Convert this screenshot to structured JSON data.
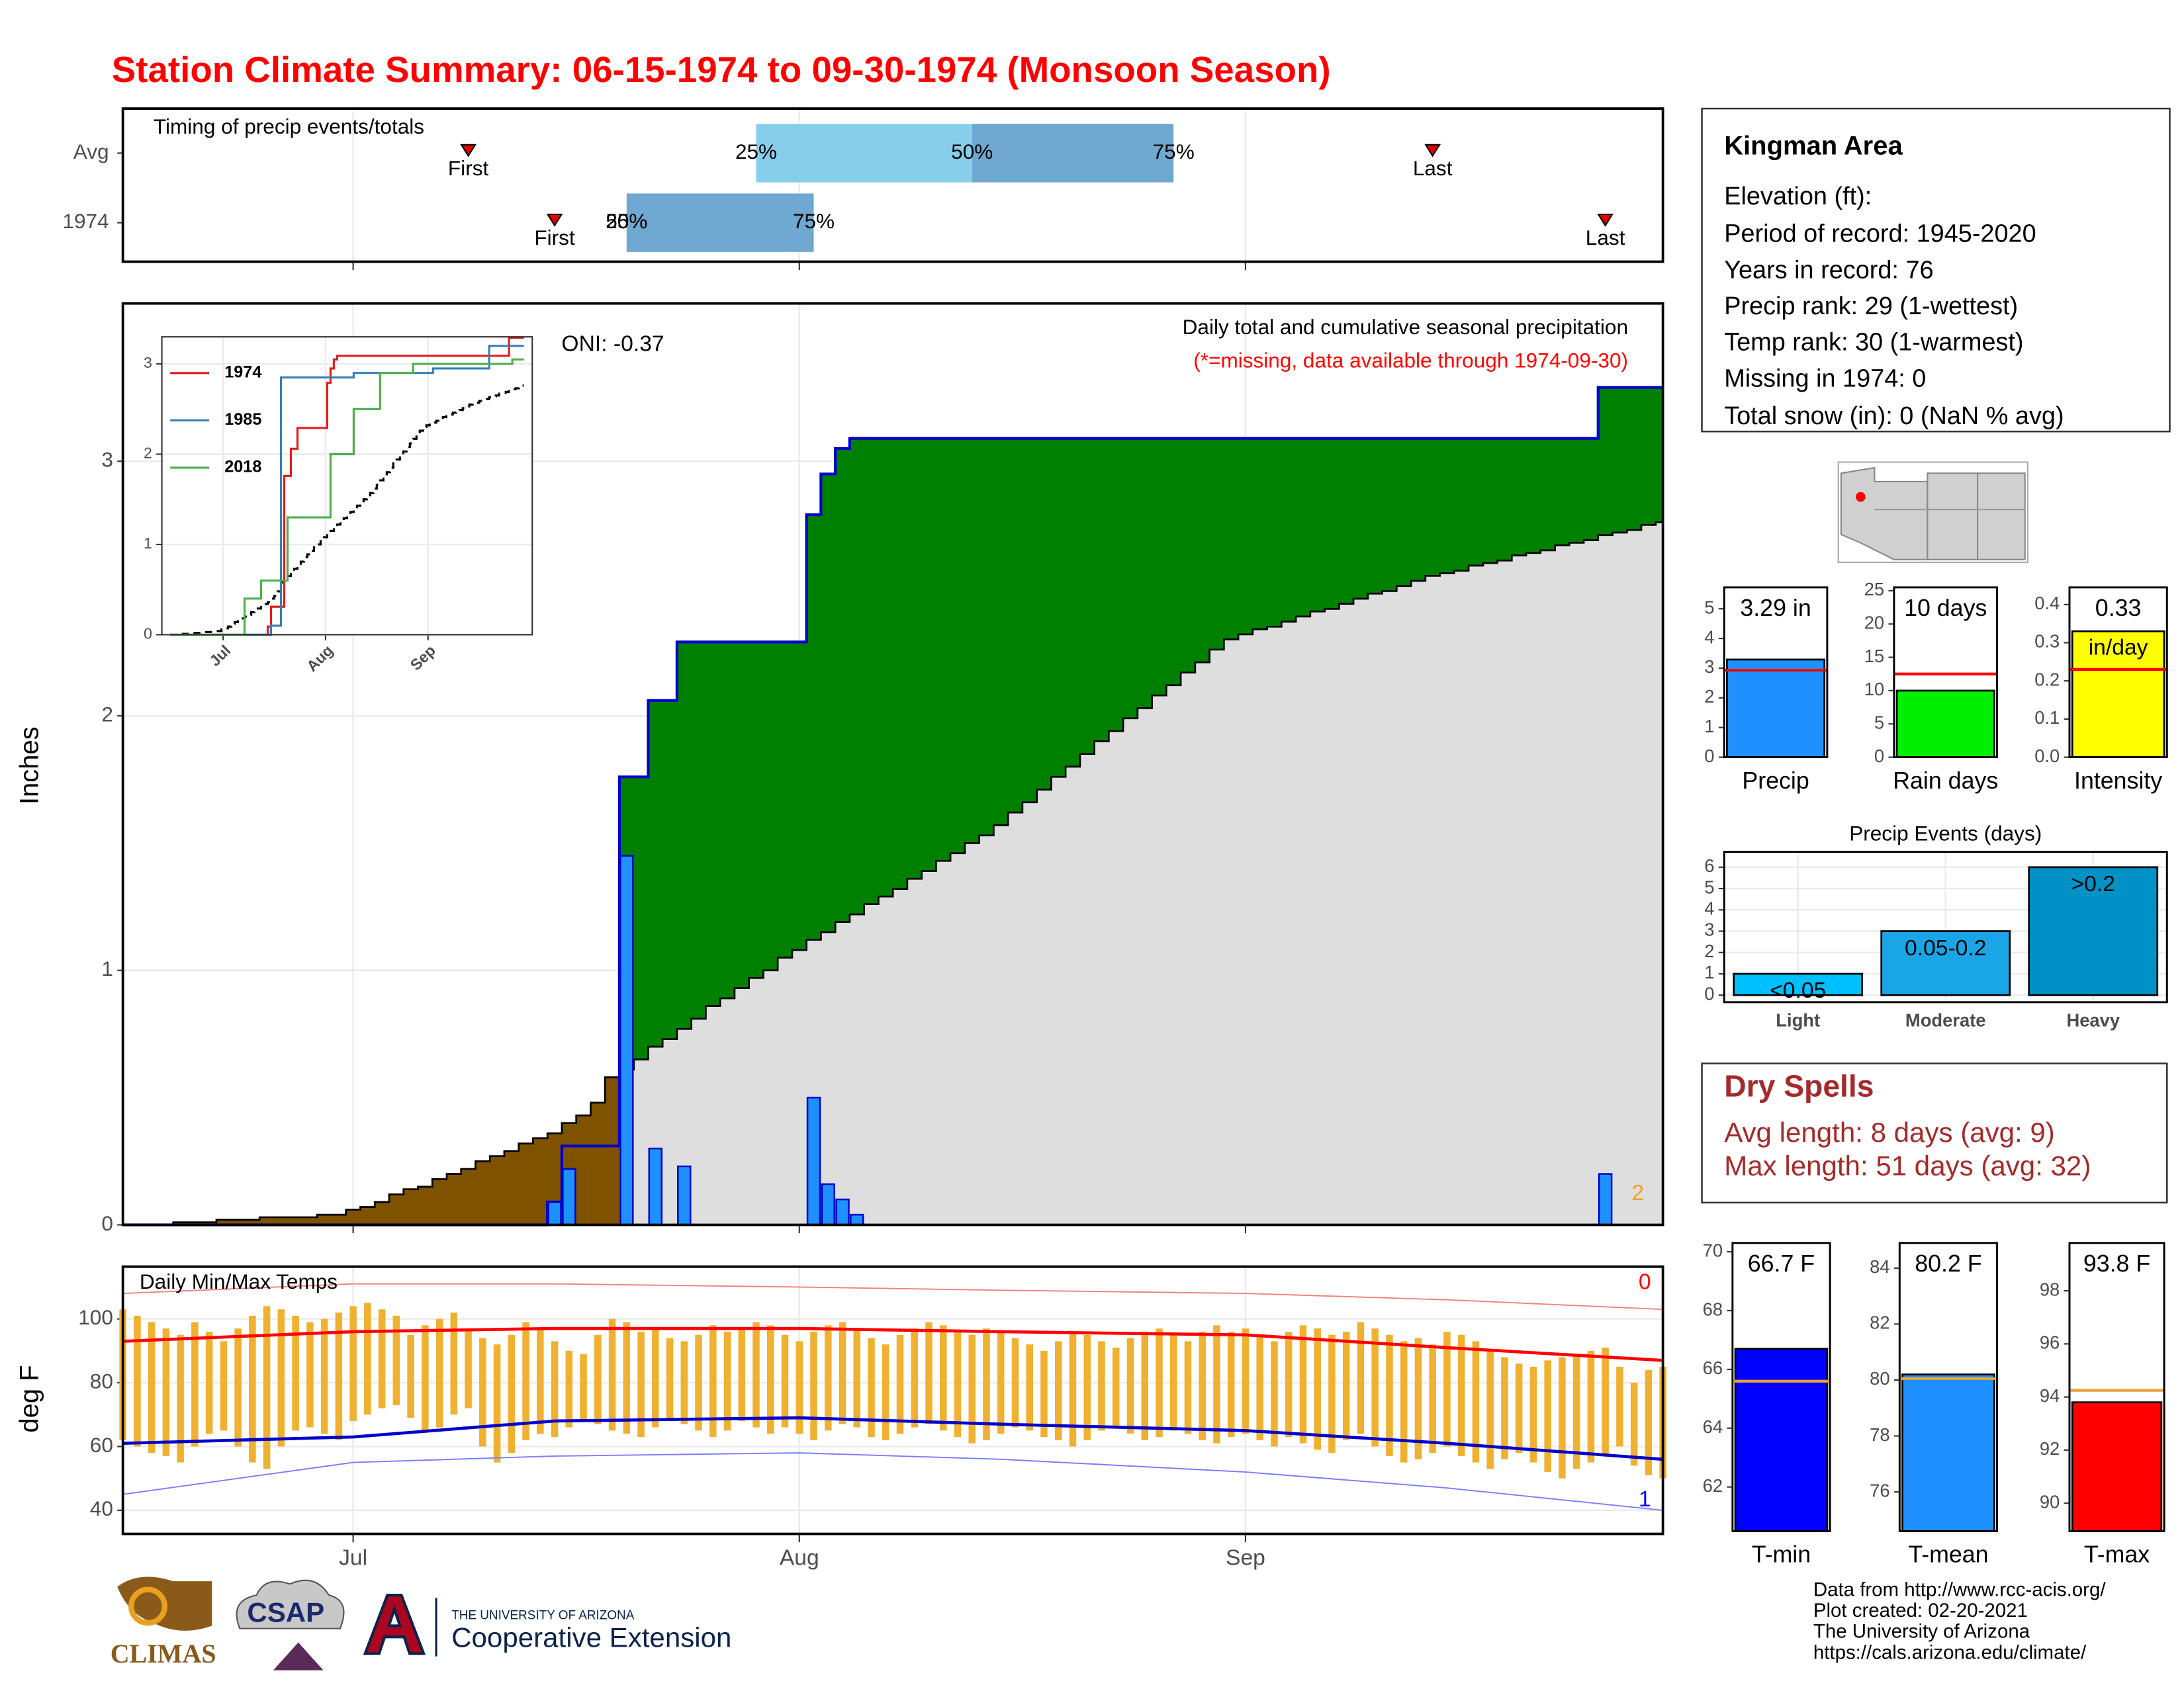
{
  "title": "Station Climate Summary: 06-15-1974 to 09-30-1974 (Monsoon Season)",
  "chart_data": [
    {
      "type": "timing",
      "title": "Timing of precip events/totals",
      "xlim": [
        "06-15",
        "09-30"
      ],
      "xticks": [
        {
          "value": "07-01",
          "label": "Jul"
        },
        {
          "value": "08-01",
          "label": "Aug"
        },
        {
          "value": "09-01",
          "label": "Sep"
        }
      ],
      "labels": {
        "first": "First",
        "last": "Last",
        "q25": "25%",
        "q50": "50%",
        "q75": "75%"
      },
      "colors": [
        "#87ceeb",
        "#6fa8d0"
      ],
      "rows": [
        {
          "name": "Avg",
          "first": "07-09",
          "q25": "07-29",
          "q50": "08-13",
          "q75": "08-27",
          "last": "09-14"
        },
        {
          "name": "1974",
          "first": "07-15",
          "q25": "07-20",
          "q50": "07-20",
          "q75": "08-02",
          "last": "09-26"
        }
      ]
    },
    {
      "type": "cumulative",
      "title": "Daily total and cumulative seasonal precipitation",
      "subtitle": "(*=missing, data available through 1974-09-30)",
      "annotation": "ONI: -0.37",
      "count_label": "2",
      "y_label": "Inches",
      "xlim": [
        "06-15",
        "09-30"
      ],
      "xticks": [
        {
          "value": "07-01",
          "label": "Jul"
        },
        {
          "value": "08-01",
          "label": "Aug"
        },
        {
          "value": "09-01",
          "label": "Sep"
        }
      ],
      "ylim": [
        0,
        3.62
      ],
      "yticks": [
        0,
        1,
        2,
        3
      ],
      "grid": true,
      "above_color": "#008000",
      "below_color": "#7f5200",
      "average_color": "#dedede",
      "daily": {
        "color": "#1e90ff",
        "line_color": "#0000cd",
        "x": [
          "07-15",
          "07-16",
          "07-20",
          "07-22",
          "07-24",
          "08-02",
          "08-03",
          "08-04",
          "08-05",
          "09-26"
        ],
        "values": [
          0.09,
          0.22,
          1.45,
          0.3,
          0.23,
          0.5,
          0.16,
          0.1,
          0.04,
          0.2
        ]
      },
      "average_daily": {
        "values": [
          0,
          0,
          0,
          0,
          0.01,
          0,
          0,
          0.01,
          0,
          0,
          0.01,
          0,
          0,
          0,
          0.01,
          0,
          0.02,
          0.01,
          0.02,
          0.03,
          0.02,
          0.01,
          0.03,
          0.02,
          0.02,
          0.03,
          0.02,
          0.02,
          0.03,
          0.02,
          0.02,
          0.04,
          0.03,
          0.05,
          0.1,
          0.03,
          0.04,
          0.05,
          0.03,
          0.04,
          0.04,
          0.05,
          0.03,
          0.04,
          0.04,
          0.03,
          0.05,
          0.03,
          0.04,
          0.03,
          0.04,
          0.03,
          0.04,
          0.03,
          0.03,
          0.04,
          0.03,
          0.04,
          0.03,
          0.04,
          0.03,
          0.04,
          0.05,
          0.04,
          0.05,
          0.05,
          0.04,
          0.05,
          0.05,
          0.04,
          0.05,
          0.04,
          0.05,
          0.04,
          0.05,
          0.04,
          0.05,
          0.04,
          0.02,
          0.02,
          0.01,
          0.02,
          0.02,
          0.02,
          0.01,
          0.02,
          0.02,
          0.02,
          0.01,
          0.02,
          0.02,
          0.02,
          0.01,
          0.01,
          0.02,
          0.01,
          0.01,
          0.02,
          0.01,
          0.01,
          0.02,
          0.01,
          0.01,
          0.02,
          0.01,
          0.01,
          0.02,
          0.01
        ]
      }
    },
    {
      "type": "line",
      "xlim": [
        "06-15",
        "09-30"
      ],
      "xticks": [
        {
          "value": "07-01",
          "label": "Jul"
        },
        {
          "value": "08-01",
          "label": "Aug"
        },
        {
          "value": "09-01",
          "label": "Sep"
        }
      ],
      "ylim": [
        0,
        3.3
      ],
      "yticks": [
        0,
        1,
        2,
        3
      ],
      "grid": true,
      "legend": "top-left",
      "series": [
        {
          "name": "1974",
          "color": "#e41a1c",
          "x": [
            "07-15",
            "07-16",
            "07-20",
            "07-22",
            "07-24",
            "08-02",
            "08-03",
            "08-04",
            "08-05",
            "09-26"
          ],
          "values": [
            0.09,
            0.22,
            1.45,
            0.3,
            0.23,
            0.5,
            0.16,
            0.1,
            0.04,
            0.2
          ]
        },
        {
          "name": "1985",
          "color": "#377eb8",
          "x": [
            "07-16",
            "07-19",
            "08-10",
            "09-03",
            "09-20"
          ],
          "values": [
            0.1,
            2.75,
            0.05,
            0.05,
            0.25
          ]
        },
        {
          "name": "2018",
          "color": "#4daf4a",
          "x": [
            "07-08",
            "07-13",
            "07-21",
            "08-03",
            "08-10",
            "08-18",
            "08-28",
            "09-27"
          ],
          "values": [
            0.4,
            0.2,
            0.7,
            0.7,
            0.5,
            0.4,
            0.1,
            0.05
          ]
        }
      ]
    },
    {
      "type": "temperature",
      "title": "Daily Min/Max Temps",
      "y_label": "deg F",
      "xlim": [
        "06-15",
        "09-30"
      ],
      "xticks": [
        {
          "value": "07-01",
          "label": "Jul"
        },
        {
          "value": "08-01",
          "label": "Aug"
        },
        {
          "value": "09-01",
          "label": "Sep"
        }
      ],
      "ylim": [
        32.6,
        116.4
      ],
      "yticks": [
        40,
        60,
        80,
        100
      ],
      "grid": true,
      "bar_color": "#f0b030",
      "daily_max": [
        103,
        101,
        99,
        97,
        95,
        99,
        96,
        93,
        97,
        101,
        104,
        103,
        101,
        99,
        100,
        102,
        104,
        105,
        103,
        101,
        95,
        98,
        100,
        102,
        97,
        94,
        92,
        95,
        99,
        97,
        93,
        90,
        89,
        95,
        100,
        99,
        96,
        97,
        94,
        93,
        95,
        98,
        96,
        97,
        99,
        98,
        95,
        93,
        96,
        98,
        99,
        97,
        94,
        92,
        95,
        97,
        99,
        98,
        96,
        95,
        97,
        96,
        94,
        92,
        90,
        93,
        96,
        95,
        93,
        91,
        94,
        96,
        97,
        95,
        93,
        96,
        98,
        96,
        97,
        95,
        93,
        96,
        98,
        97,
        95,
        96,
        99,
        97,
        95,
        93,
        94,
        92,
        96,
        95,
        93,
        90,
        88,
        86,
        85,
        87,
        88,
        89,
        90,
        91,
        85,
        80,
        84,
        85
      ],
      "daily_min": [
        62,
        60,
        58,
        57,
        55,
        60,
        64,
        65,
        60,
        55,
        53,
        60,
        65,
        66,
        64,
        62,
        68,
        70,
        72,
        73,
        69,
        65,
        66,
        70,
        72,
        60,
        55,
        58,
        62,
        64,
        63,
        66,
        68,
        67,
        65,
        64,
        63,
        66,
        68,
        67,
        65,
        63,
        65,
        68,
        66,
        64,
        66,
        64,
        62,
        65,
        67,
        66,
        63,
        62,
        64,
        66,
        67,
        65,
        63,
        61,
        62,
        64,
        66,
        65,
        63,
        62,
        60,
        62,
        65,
        66,
        64,
        62,
        63,
        65,
        64,
        62,
        61,
        63,
        64,
        62,
        60,
        63,
        61,
        59,
        58,
        62,
        64,
        60,
        57,
        55,
        56,
        58,
        60,
        57,
        55,
        53,
        56,
        58,
        55,
        52,
        50,
        53,
        55,
        57,
        60,
        54,
        51,
        50
      ],
      "avg_max": {
        "color": "#ff0000",
        "x": [
          "06-15",
          "07-01",
          "07-15",
          "08-01",
          "08-15",
          "09-01",
          "09-15",
          "09-30"
        ],
        "values": [
          93,
          96,
          97,
          97,
          96,
          95,
          91,
          87
        ]
      },
      "avg_min": {
        "color": "#0000cd",
        "x": [
          "06-15",
          "07-01",
          "07-15",
          "08-01",
          "08-15",
          "09-01",
          "09-15",
          "09-30"
        ],
        "values": [
          61,
          63,
          68,
          69,
          67,
          65,
          61,
          56
        ]
      },
      "record_max": {
        "color": "#f08080",
        "x": [
          "06-15",
          "07-01",
          "07-15",
          "08-01",
          "08-15",
          "09-01",
          "09-15",
          "09-30"
        ],
        "values": [
          108,
          111,
          111,
          110,
          109,
          108,
          106,
          103
        ]
      },
      "record_min": {
        "color": "#7b7bff",
        "x": [
          "06-15",
          "07-01",
          "07-15",
          "08-01",
          "08-15",
          "09-01",
          "09-15",
          "09-30"
        ],
        "values": [
          45,
          55,
          57,
          58,
          56,
          52,
          47,
          40
        ]
      },
      "annotations": [
        {
          "text": "0",
          "color": "#ff0000"
        },
        {
          "text": "1",
          "color": "#0000ff"
        }
      ]
    },
    {
      "type": "bar",
      "categories": [
        "Precip"
      ],
      "values": [
        3.29
      ],
      "value_labels": [
        "3.29 in"
      ],
      "color": "#1e90ff",
      "average": 2.93,
      "average_color": "#ff0000",
      "ylim": [
        0,
        5.72
      ],
      "yticks": [
        0,
        1,
        2,
        3,
        4,
        5
      ]
    },
    {
      "type": "bar",
      "categories": [
        "Rain days"
      ],
      "values": [
        10
      ],
      "value_labels": [
        "10 days"
      ],
      "color": "#00ee00",
      "average": 12.5,
      "average_color": "#ff0000",
      "ylim": [
        0,
        25.5
      ],
      "yticks": [
        0,
        5,
        10,
        15,
        20,
        25
      ]
    },
    {
      "type": "bar",
      "categories": [
        "Intensity"
      ],
      "values": [
        0.33
      ],
      "value_labels": [
        "0.33"
      ],
      "unit_label": "in/day",
      "color": "#ffff00",
      "average": 0.23,
      "average_color": "#ff0000",
      "ylim": [
        0,
        0.445
      ],
      "yticks": [
        {
          "value": 0,
          "label": "0.0"
        },
        0.1,
        0.2,
        0.3,
        0.4
      ]
    },
    {
      "type": "bar",
      "title": "Precip Events (days)",
      "categories": [
        "Light",
        "Moderate",
        "Heavy"
      ],
      "values": [
        1,
        3,
        6
      ],
      "value_labels": [
        "<0.05",
        "0.05-0.2",
        ">0.2"
      ],
      "colors": [
        "#00bfff",
        "#1aa6e6",
        "#0092c7"
      ],
      "ylim": [
        -0.33,
        6.72
      ],
      "yticks": [
        0,
        1,
        2,
        3,
        4,
        5,
        6
      ],
      "grid": true
    },
    {
      "type": "bar",
      "categories": [
        "T-min"
      ],
      "values": [
        66.7
      ],
      "value_labels": [
        "66.7 F"
      ],
      "color": "#0000ff",
      "average": 65.6,
      "average_color": "#e8a33c",
      "ylim": [
        60.5,
        70.3
      ],
      "yticks": [
        62,
        64,
        66,
        68,
        70
      ]
    },
    {
      "type": "bar",
      "categories": [
        "T-mean"
      ],
      "values": [
        80.2
      ],
      "value_labels": [
        "80.2 F"
      ],
      "color": "#1e90ff",
      "average": 80.05,
      "average_color": "#e8a33c",
      "ylim": [
        74.6,
        84.9
      ],
      "yticks": [
        76,
        78,
        80,
        82,
        84
      ]
    },
    {
      "type": "bar",
      "categories": [
        "T-max"
      ],
      "values": [
        93.8
      ],
      "value_labels": [
        "93.8 F"
      ],
      "color": "#ff0000",
      "average": 94.25,
      "average_color": "#e8a33c",
      "ylim": [
        88.95,
        99.8
      ],
      "yticks": [
        90,
        92,
        94,
        96,
        98
      ]
    }
  ],
  "station": {
    "name": "Kingman Area",
    "lines": [
      "Elevation (ft):",
      "Period of record: 1945-2020",
      "Years in record: 76",
      "Precip rank: 29 (1-wettest)",
      "Temp rank: 30 (1-warmest)",
      "Missing in 1974: 0",
      "Total snow (in): 0 (NaN % avg)"
    ]
  },
  "dry_spells": {
    "title": "Dry Spells",
    "lines": [
      "Avg length: 8 days (avg: 9)",
      "Max length: 51 days (avg: 32)"
    ]
  },
  "footer": {
    "logos": [
      "CLIMAS",
      "CSAP",
      "THE UNIVERSITY OF ARIZONA",
      "Cooperative Extension"
    ],
    "credits": [
      "Data from http://www.rcc-acis.org/",
      "Plot created: 02-20-2021",
      "The University of Arizona",
      "https://cals.arizona.edu/climate/"
    ]
  }
}
